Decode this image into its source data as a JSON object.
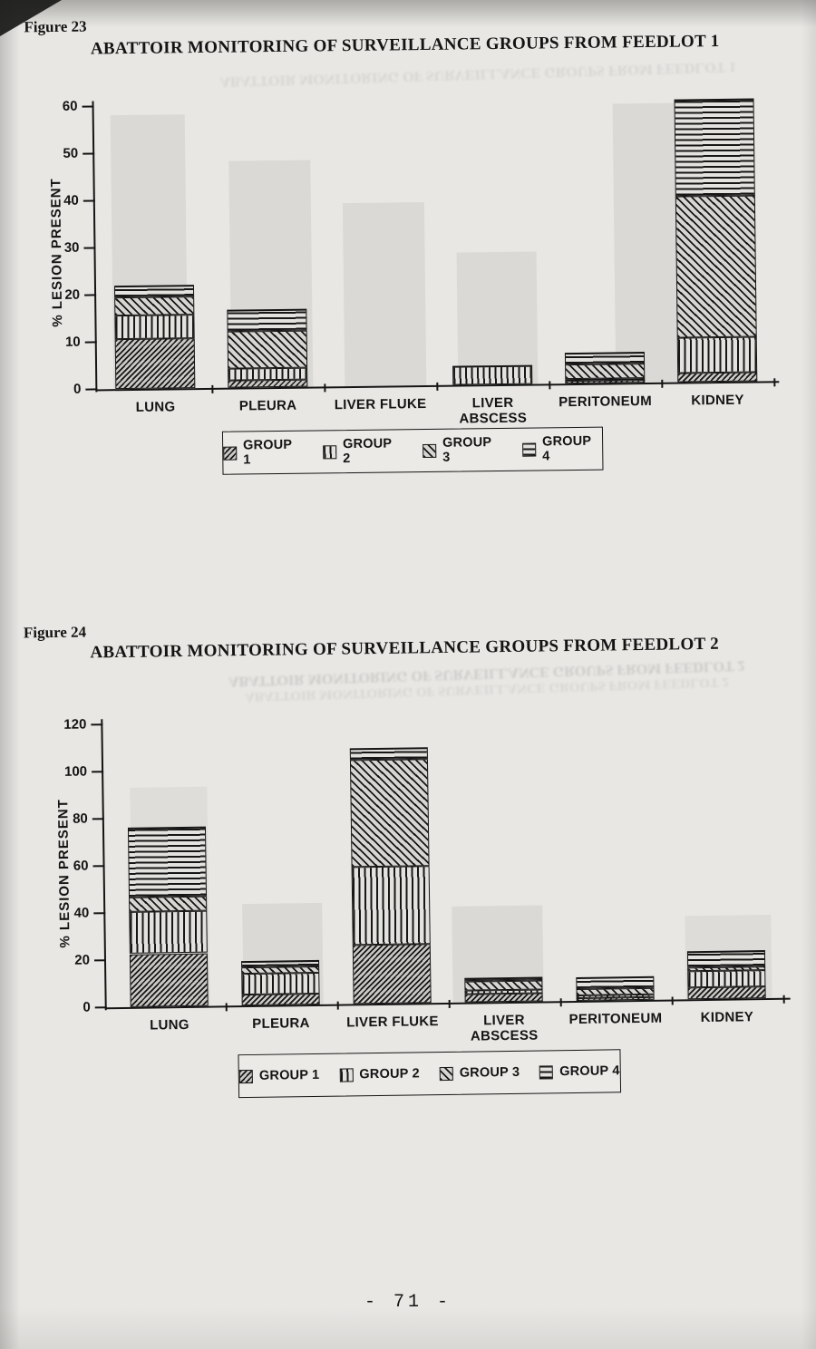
{
  "page": {
    "number_label": "- 71 -"
  },
  "colors": {
    "ink": "#141414",
    "paper": "#e8e7e4"
  },
  "patterns": {
    "GROUP 1": "dense-diagonal-hatch",
    "GROUP 2": "vertical-lines",
    "GROUP 3": "diagonal-hatch",
    "GROUP 4": "horizontal-lines"
  },
  "chart_data": [
    {
      "type": "bar",
      "stacked": true,
      "figure_label": "Figure 23",
      "title": "ABATTOIR MONITORING OF SURVEILLANCE GROUPS FROM FEEDLOT 1",
      "xlabel": "",
      "ylabel": "% LESION PRESENT",
      "ylim": [
        0,
        60
      ],
      "yticks": [
        0,
        10,
        20,
        30,
        40,
        50,
        60
      ],
      "grid": false,
      "legend_position": "bottom-center",
      "categories": [
        "LUNG",
        "PLEURA",
        "LIVER FLUKE",
        "LIVER ABSCESS",
        "PERITONEUM",
        "KIDNEY"
      ],
      "category_label_lines": [
        [
          "LUNG"
        ],
        [
          "PLEURA"
        ],
        [
          "LIVER FLUKE"
        ],
        [
          "LIVER",
          "ABSCESS"
        ],
        [
          "PERITONEUM"
        ],
        [
          "KIDNEY"
        ]
      ],
      "series": [
        {
          "name": "GROUP 1",
          "values": [
            10.5,
            1.5,
            0,
            0,
            0.5,
            2
          ]
        },
        {
          "name": "GROUP 2",
          "values": [
            5,
            2.5,
            0,
            4,
            0.5,
            7.5
          ]
        },
        {
          "name": "GROUP 3",
          "values": [
            4,
            8,
            0,
            0,
            3,
            30
          ]
        },
        {
          "name": "GROUP 4",
          "values": [
            2.5,
            4.5,
            0,
            0,
            2.5,
            20.5
          ]
        }
      ]
    },
    {
      "type": "bar",
      "stacked": true,
      "figure_label": "Figure 24",
      "title": "ABATTOIR MONITORING OF SURVEILLANCE GROUPS FROM FEEDLOT 2",
      "xlabel": "",
      "ylabel": "% LESION PRESENT",
      "ylim": [
        0,
        120
      ],
      "yticks": [
        0,
        20,
        40,
        60,
        80,
        100,
        120
      ],
      "grid": false,
      "legend_position": "bottom-center",
      "categories": [
        "LUNG",
        "PLEURA",
        "LIVER FLUKE",
        "LIVER ABSCESS",
        "PERITONEUM",
        "KIDNEY"
      ],
      "category_label_lines": [
        [
          "LUNG"
        ],
        [
          "PLEURA"
        ],
        [
          "LIVER FLUKE"
        ],
        [
          "LIVER",
          "ABSCESS"
        ],
        [
          "PERITONEUM"
        ],
        [
          "KIDNEY"
        ]
      ],
      "series": [
        {
          "name": "GROUP 1",
          "values": [
            22.5,
            4.5,
            25,
            3.5,
            1,
            5
          ]
        },
        {
          "name": "GROUP 2",
          "values": [
            18,
            9,
            33,
            1.5,
            1.5,
            7
          ]
        },
        {
          "name": "GROUP 3",
          "values": [
            6,
            2.5,
            45.5,
            4,
            2.5,
            1.5
          ]
        },
        {
          "name": "GROUP 4",
          "values": [
            29.5,
            3,
            5,
            1.5,
            5,
            7
          ]
        }
      ]
    }
  ]
}
